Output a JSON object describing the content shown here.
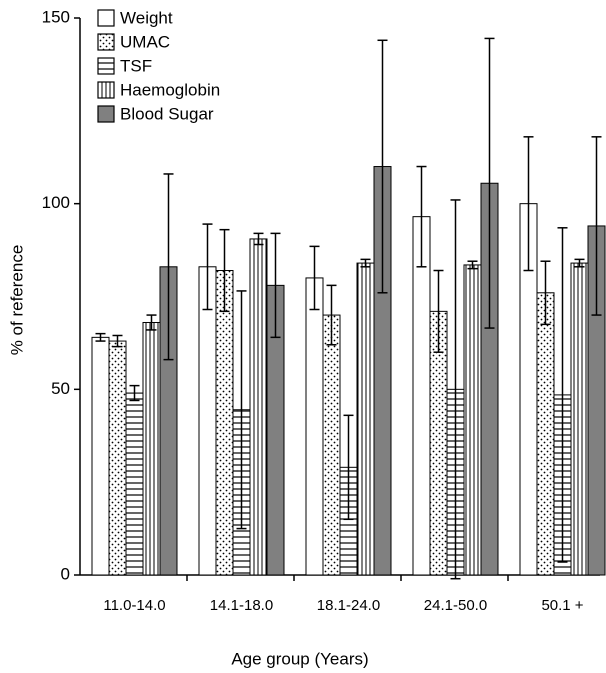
{
  "chart_data": {
    "type": "bar",
    "x_label": "Age group (Years)",
    "y_label": "% of reference",
    "categories": [
      "11.0-14.0",
      "14.1-18.0",
      "18.1-24.0",
      "24.1-50.0",
      "50.1 +"
    ],
    "series": [
      {
        "name": "Weight",
        "color": "#ffffff",
        "pattern": "solid",
        "values": [
          64,
          83,
          80,
          96.5,
          100
        ],
        "errors": [
          1,
          11.5,
          8.5,
          13.5,
          18
        ]
      },
      {
        "name": "UMAC",
        "color": "#ffffff",
        "pattern": "dots",
        "values": [
          63,
          82,
          70,
          71,
          76
        ],
        "errors": [
          1.5,
          11,
          8,
          11,
          8.5
        ]
      },
      {
        "name": "TSF",
        "color": "#ffffff",
        "pattern": "horizontal",
        "values": [
          49,
          44.5,
          29,
          50,
          48.5
        ],
        "errors": [
          2,
          32,
          14,
          51,
          45
        ]
      },
      {
        "name": "Haemoglobin",
        "color": "#ffffff",
        "pattern": "vertical",
        "values": [
          68,
          90.5,
          84,
          83.5,
          84
        ],
        "errors": [
          2,
          1.5,
          1,
          1,
          1
        ]
      },
      {
        "name": "Blood Sugar",
        "color": "#808080",
        "pattern": "solid",
        "values": [
          83,
          78,
          110,
          105.5,
          94
        ],
        "errors": [
          25,
          14,
          34,
          39,
          24
        ]
      }
    ],
    "ylim": [
      0,
      150
    ],
    "yticks": [
      0,
      50,
      100,
      150
    ],
    "legend": "top-left"
  }
}
